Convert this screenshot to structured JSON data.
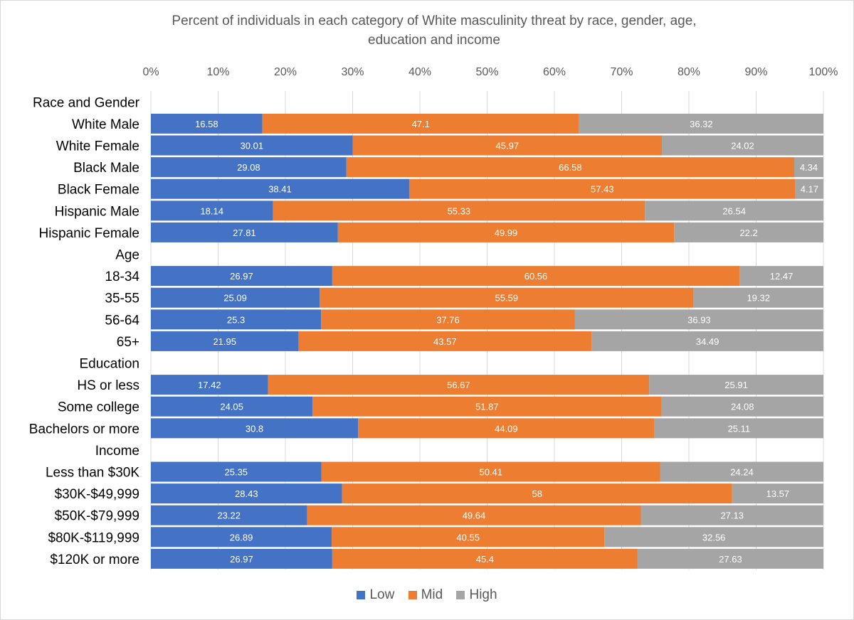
{
  "chart_data": {
    "type": "bar",
    "orientation": "horizontal",
    "stacked": "percent",
    "title": "Percent of individuals in each category of White masculinity threat by race, gender, age, education and income",
    "title_lines": [
      "Percent of individuals in each category of White masculinity threat by race, gender, age,",
      "education and income"
    ],
    "xlabel": "",
    "ylabel": "",
    "xlim": [
      0,
      100
    ],
    "x_ticks": [
      "0%",
      "10%",
      "20%",
      "30%",
      "40%",
      "50%",
      "60%",
      "70%",
      "80%",
      "90%",
      "100%"
    ],
    "x_axis_position": "top",
    "grid": true,
    "legend_position": "bottom",
    "categories": [
      "Race and Gender",
      "White Male",
      "White Female",
      "Black Male",
      "Black Female",
      "Hispanic Male",
      "Hispanic Female",
      "Age",
      "18-34",
      "35-55",
      "56-64",
      "65+",
      "Education",
      "HS or less",
      "Some college",
      "Bachelors or more",
      "Income",
      "Less than $30K",
      "$30K-$49,999",
      "$50K-$79,999",
      "$80K-$119,999",
      "$120K or more"
    ],
    "series": [
      {
        "name": "Low",
        "color": "#4472c4",
        "values": [
          null,
          16.58,
          30.01,
          29.08,
          38.41,
          18.14,
          27.81,
          null,
          26.97,
          25.09,
          25.3,
          21.95,
          null,
          17.42,
          24.05,
          30.8,
          null,
          25.35,
          28.43,
          23.22,
          26.89,
          26.97
        ],
        "labels": [
          "",
          "16.58",
          "30.01",
          "29.08",
          "38.41",
          "18.14",
          "27.81",
          "",
          "26.97",
          "25.09",
          "25.3",
          "21.95",
          "",
          "17.42",
          "24.05",
          "30.8",
          "",
          "25.35",
          "28.43",
          "23.22",
          "26.89",
          "26.97"
        ]
      },
      {
        "name": "Mid",
        "color": "#ed7d31",
        "values": [
          null,
          47.1,
          45.97,
          66.58,
          57.43,
          55.33,
          49.99,
          null,
          60.56,
          55.59,
          37.76,
          43.57,
          null,
          56.67,
          51.87,
          44.09,
          null,
          50.41,
          58,
          49.64,
          40.55,
          45.4
        ],
        "labels": [
          "",
          "47.1",
          "45.97",
          "66.58",
          "57.43",
          "55.33",
          "49.99",
          "",
          "60.56",
          "55.59",
          "37.76",
          "43.57",
          "",
          "56.67",
          "51.87",
          "44.09",
          "",
          "50.41",
          "58",
          "49.64",
          "40.55",
          "45.4"
        ]
      },
      {
        "name": "High",
        "color": "#a5a5a5",
        "values": [
          null,
          36.32,
          24.02,
          4.34,
          4.17,
          26.54,
          22.2,
          null,
          12.47,
          19.32,
          36.93,
          34.49,
          null,
          25.91,
          24.08,
          25.11,
          null,
          24.24,
          13.57,
          27.13,
          32.56,
          27.63
        ],
        "labels": [
          "",
          "36.32",
          "24.02",
          "4.34",
          "4.17",
          "26.54",
          "22.2",
          "",
          "12.47",
          "19.32",
          "36.93",
          "34.49",
          "",
          "25.91",
          "24.08",
          "25.11",
          "",
          "24.24",
          "13.57",
          "27.13",
          "32.56",
          "27.63"
        ]
      }
    ]
  },
  "legend": {
    "items": [
      {
        "label": "Low",
        "color": "#4472c4"
      },
      {
        "label": "Mid",
        "color": "#ed7d31"
      },
      {
        "label": "High",
        "color": "#a5a5a5"
      }
    ]
  }
}
